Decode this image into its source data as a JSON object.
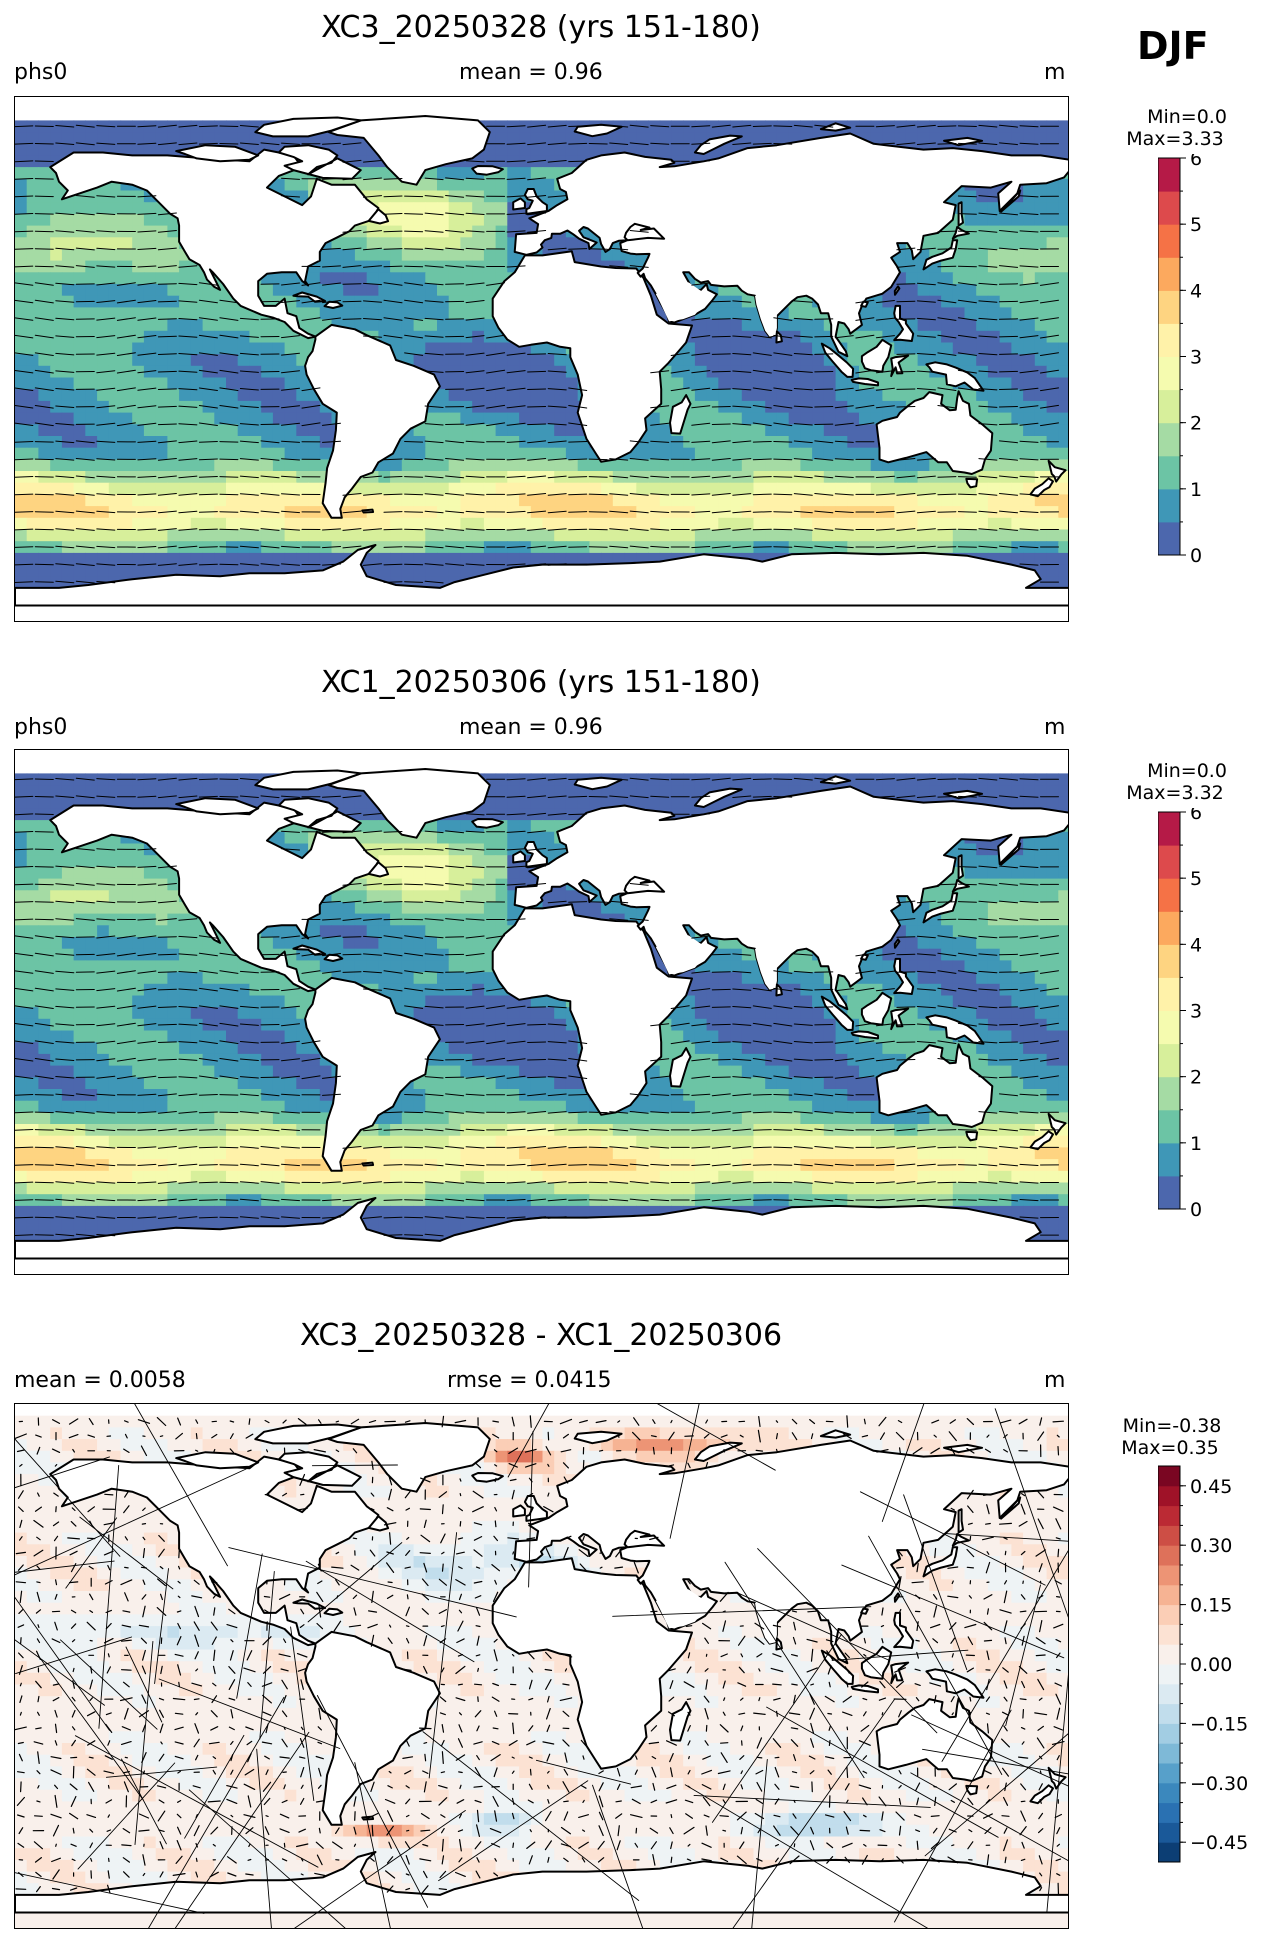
{
  "season": "DJF",
  "chart_data": [
    {
      "type": "heatmap",
      "title": "XC3_20250328 (yrs 151-180)",
      "left_label": "phs0",
      "center_label": "mean = 0.96",
      "units": "m",
      "min_label": "Min=0.0",
      "max_label": "Max=3.33",
      "colormap": "Spectral_r",
      "colorbar": {
        "range": [
          0,
          6
        ],
        "ticks": [
          "0",
          "1",
          "2",
          "3",
          "4",
          "5",
          "6"
        ],
        "levels": 12
      },
      "field": {
        "mean": 0.96,
        "min": 0.0,
        "max": 3.33
      }
    },
    {
      "type": "heatmap",
      "title": "XC1_20250306 (yrs 151-180)",
      "left_label": "phs0",
      "center_label": "mean = 0.96",
      "units": "m",
      "min_label": "Min=0.0",
      "max_label": "Max=3.32",
      "colormap": "Spectral_r",
      "colorbar": {
        "range": [
          0,
          6
        ],
        "ticks": [
          "0",
          "1",
          "2",
          "3",
          "4",
          "5",
          "6"
        ],
        "levels": 12
      },
      "field": {
        "mean": 0.96,
        "min": 0.0,
        "max": 3.32
      }
    },
    {
      "type": "heatmap",
      "title": "XC3_20250328 - XC1_20250306",
      "left_label": "mean = 0.0058",
      "center_label": "rmse = 0.0415",
      "units": "m",
      "min_label": "Min=-0.38",
      "max_label": "Max=0.35",
      "colormap": "RdBu_r",
      "colorbar": {
        "range": [
          -0.5,
          0.5
        ],
        "ticks": [
          "0.45",
          "0.30",
          "0.15",
          "0.00",
          "−0.15",
          "−0.30",
          "−0.45"
        ],
        "levels": 20
      },
      "field": {
        "mean": 0.0058,
        "rmse": 0.0415,
        "min": -0.38,
        "max": 0.35
      }
    }
  ],
  "colors": {
    "spectral": [
      "#5e4fa2",
      "#3288bd",
      "#66c2a5",
      "#abdda4",
      "#e6f598",
      "#ffffbf",
      "#fee08b",
      "#fdae61",
      "#f46d43",
      "#d53e4f",
      "#9e0142"
    ],
    "rdbu": [
      "#053061",
      "#2166ac",
      "#4393c3",
      "#92c5de",
      "#d1e5f0",
      "#f7f7f7",
      "#fddbc7",
      "#f4a582",
      "#d6604d",
      "#b2182b",
      "#67001f"
    ],
    "land": "#ffffff",
    "coast": "#000000"
  }
}
